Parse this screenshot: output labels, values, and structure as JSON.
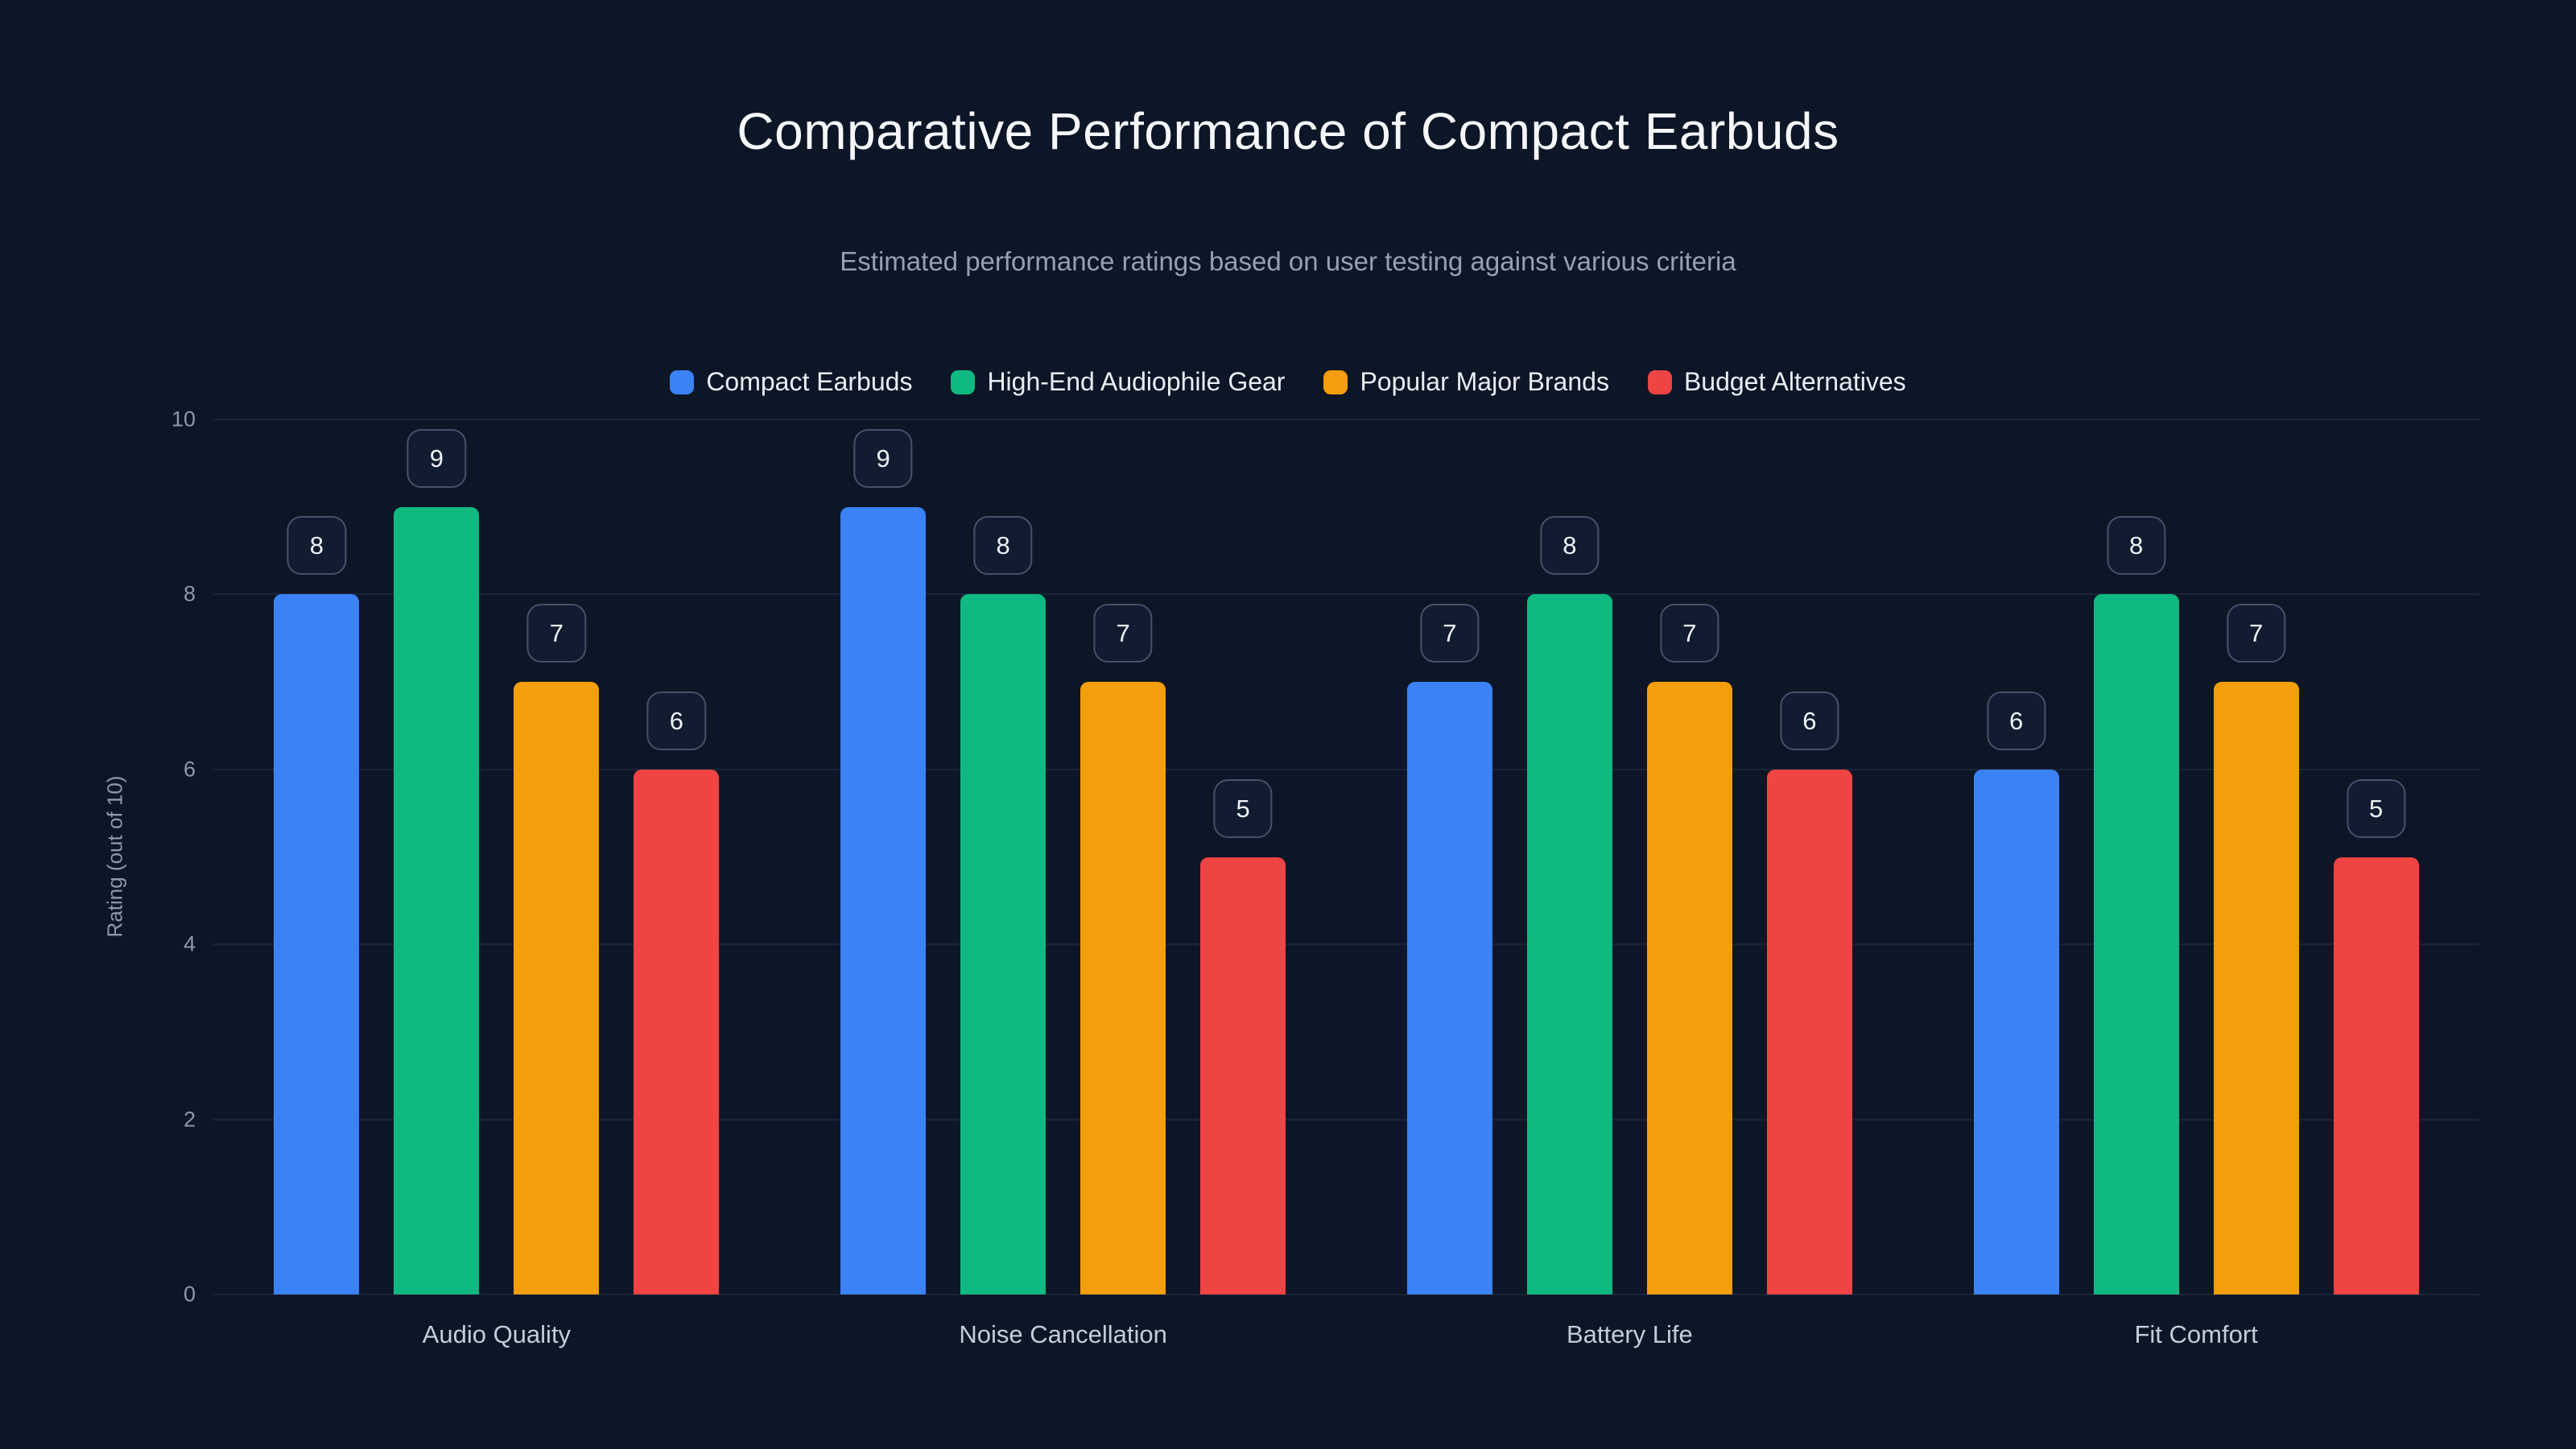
{
  "page": {
    "title": "Comparative Performance of Compact Earbuds",
    "subtitle": "Estimated performance ratings based on user testing against various criteria"
  },
  "colors": {
    "background": "#0d1626",
    "title_text": "#f5f7fa",
    "subtitle_text": "#93a1b4",
    "legend_text": "#e9eef5",
    "tick_text": "#8b99ad",
    "category_text": "#c3cdd9",
    "grid": "#1b2539",
    "badge_bg": "#111c31",
    "badge_border": "#45526b",
    "badge_text": "#eef2f7",
    "series_blue": "#3b82f6",
    "series_green": "#10b981",
    "series_orange": "#f59e0b",
    "series_red": "#ef4444"
  },
  "chart_data": {
    "type": "bar",
    "title": "Comparative Performance of Compact Earbuds",
    "subtitle": "Estimated performance ratings based on user testing against various criteria",
    "xlabel": "",
    "ylabel": "Rating (out of 10)",
    "ylim": [
      0,
      10
    ],
    "y_ticks": [
      0,
      2,
      4,
      6,
      8,
      10
    ],
    "grid": true,
    "legend_position": "top-center",
    "value_labels": true,
    "categories": [
      "Audio Quality",
      "Noise Cancellation",
      "Battery Life",
      "Fit Comfort"
    ],
    "series": [
      {
        "name": "Compact Earbuds",
        "color": "#3b82f6",
        "values": [
          8,
          9,
          7,
          6
        ]
      },
      {
        "name": "High-End Audiophile Gear",
        "color": "#10b981",
        "values": [
          9,
          8,
          8,
          8
        ]
      },
      {
        "name": "Popular Major Brands",
        "color": "#f59e0b",
        "values": [
          7,
          7,
          7,
          7
        ]
      },
      {
        "name": "Budget Alternatives",
        "color": "#ef4444",
        "values": [
          6,
          5,
          6,
          5
        ]
      }
    ]
  }
}
